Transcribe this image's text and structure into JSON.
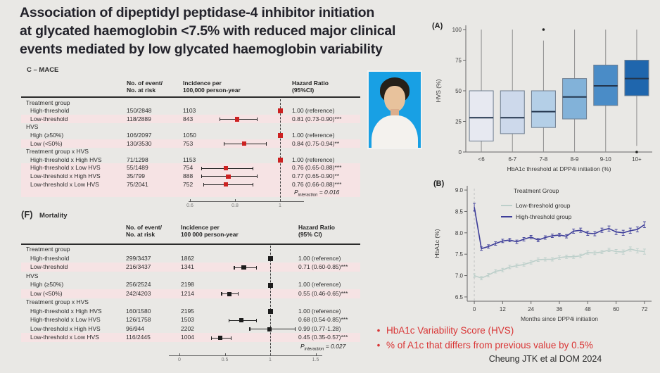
{
  "slide": {
    "title": "Association of dipeptidyl peptidase-4 inhibitor initiation\nat glycated haemoglobin <7.5% with reduced major clinical\nevents mediated by low glycated haemoglobin variability",
    "bullets": [
      "HbA1c Variability Score (HVS)",
      "% of A1c that differs from previous value by 0.5%"
    ],
    "citation": "Cheung JTK et al DOM 2024",
    "background": "#e9e8e5",
    "accent_red": "#d93535",
    "photo_background": "#18a0e4"
  },
  "chart_data": [
    {
      "id": "forest_mace",
      "type": "forest",
      "tag": "",
      "heading": "C – MACE",
      "columns": {
        "events": "No. of event/\nNo. at risk",
        "incidence": "Incidence per\n100,000 person-year",
        "hr": "Hazard Ratio\n(95%CI)"
      },
      "marker_color": "#cc2121",
      "axis_ticks": [
        0.6,
        0.8,
        1
      ],
      "axis_tick_labels": [
        "0.6",
        "0.8",
        "1"
      ],
      "p_symbol": "P",
      "p_sub": "interaction",
      "p_value": " = 0.016",
      "p_highlight": true,
      "rows": [
        {
          "label": "Treatment group",
          "indent": 0
        },
        {
          "label": "High-threshold",
          "indent": 1,
          "events": "150/2848",
          "incidence": "1103",
          "hr": 1.0,
          "text": "1.00 (reference)",
          "ref": true
        },
        {
          "label": "Low-threshold",
          "indent": 1,
          "events": "118/2889",
          "incidence": "843",
          "hr": 0.81,
          "lo": 0.73,
          "hi": 0.9,
          "text": "0.81 (0.73-0.90)***",
          "hl": true
        },
        {
          "label": "HVS",
          "indent": 0
        },
        {
          "label": "High (≥50%)",
          "indent": 1,
          "events": "106/2097",
          "incidence": "1050",
          "hr": 1.0,
          "text": "1.00 (reference)",
          "ref": true
        },
        {
          "label": "Low (<50%)",
          "indent": 1,
          "events": "130/3530",
          "incidence": "753",
          "hr": 0.84,
          "lo": 0.75,
          "hi": 0.94,
          "text": "0.84 (0.75-0.94)**",
          "hl": true
        },
        {
          "label": "Treatment group x HVS",
          "indent": 0
        },
        {
          "label": "High-threshold x High HVS",
          "indent": 1,
          "events": "71/1298",
          "incidence": "1153",
          "hr": 1.0,
          "text": "1.00 (reference)",
          "ref": true
        },
        {
          "label": "High-threshold x Low HVS",
          "indent": 1,
          "events": "55/1489",
          "incidence": "754",
          "hr": 0.76,
          "lo": 0.65,
          "hi": 0.88,
          "text": "0.76 (0.65-0.88)***",
          "hl": true
        },
        {
          "label": "Low-threshold x High HVS",
          "indent": 1,
          "events": "35/799",
          "incidence": "888",
          "hr": 0.77,
          "lo": 0.65,
          "hi": 0.9,
          "text": "0.77 (0.65-0.90)**",
          "hl": true
        },
        {
          "label": "Low-threshold x Low HVS",
          "indent": 1,
          "events": "75/2041",
          "incidence": "752",
          "hr": 0.76,
          "lo": 0.66,
          "hi": 0.88,
          "text": "0.76 (0.66-0.88)***",
          "hl": true
        }
      ]
    },
    {
      "id": "forest_mortality",
      "type": "forest",
      "tag": "(F)",
      "heading": "Mortality",
      "columns": {
        "events": "No. of event/\nNo. at risk",
        "incidence": "Incidence per\n100 000 person-year",
        "hr": "Hazard Ratio\n(95% CI)"
      },
      "marker_color": "#1c1c1c",
      "axis_ticks": [
        0,
        0.5,
        1,
        1.5
      ],
      "axis_tick_labels": [
        "0",
        "0.5",
        "1",
        "1.5"
      ],
      "p_symbol": "P",
      "p_sub": "interaction",
      "p_value": " = 0.027",
      "p_highlight": false,
      "rows": [
        {
          "label": "Treatment group",
          "indent": 0
        },
        {
          "label": "High-threshold",
          "indent": 1,
          "events": "299/3437",
          "incidence": "1862",
          "hr": 1.0,
          "text": "1.00 (reference)",
          "ref": true
        },
        {
          "label": "Low-threshold",
          "indent": 1,
          "events": "216/3437",
          "incidence": "1341",
          "hr": 0.71,
          "lo": 0.6,
          "hi": 0.85,
          "text": "0.71 (0.60-0.85)***",
          "hl": true
        },
        {
          "label": "HVS",
          "indent": 0
        },
        {
          "label": "High (≥50%)",
          "indent": 1,
          "events": "256/2524",
          "incidence": "2198",
          "hr": 1.0,
          "text": "1.00 (reference)",
          "ref": true
        },
        {
          "label": "Low (<50%)",
          "indent": 1,
          "events": "242/4203",
          "incidence": "1214",
          "hr": 0.55,
          "lo": 0.46,
          "hi": 0.65,
          "text": "0.55 (0.46-0.65)***",
          "hl": true
        },
        {
          "label": "Treatment group x HVS",
          "indent": 0
        },
        {
          "label": "High-threshold x High HVS",
          "indent": 1,
          "events": "160/1580",
          "incidence": "2195",
          "hr": 1.0,
          "text": "1.00 (reference)",
          "ref": true
        },
        {
          "label": "High-threshold x Low HVS",
          "indent": 1,
          "events": "126/1758",
          "incidence": "1503",
          "hr": 0.68,
          "lo": 0.54,
          "hi": 0.85,
          "text": "0.68 (0.54-0.85)***"
        },
        {
          "label": "Low-threshold x High HVS",
          "indent": 1,
          "events": "96/944",
          "incidence": "2202",
          "hr": 0.99,
          "lo": 0.77,
          "hi": 1.28,
          "text": "0.99 (0.77-1.28)"
        },
        {
          "label": "Low-threshold x Low HVS",
          "indent": 1,
          "events": "116/2445",
          "incidence": "1004",
          "hr": 0.45,
          "lo": 0.35,
          "hi": 0.57,
          "text": "0.45 (0.35-0.57)***",
          "hl": true
        }
      ]
    },
    {
      "id": "hvs_by_hba1c_threshold",
      "type": "box",
      "tag": "(A)",
      "xlabel": "HbA1c threshold at DPP4i initiation (%)",
      "ylabel": "HVS (%)",
      "ylim": [
        0,
        100
      ],
      "yticks": [
        0,
        25,
        50,
        75,
        100
      ],
      "categories": [
        "<6",
        "6-7",
        "7-8",
        "8-9",
        "9-10",
        "10+"
      ],
      "boxes": [
        {
          "low": 0,
          "q1": 9,
          "median": 28,
          "q3": 50,
          "high": 100,
          "outliers": [],
          "color": "#e7e9f1"
        },
        {
          "low": 0,
          "q1": 15,
          "median": 28,
          "q3": 50,
          "high": 100,
          "outliers": [],
          "color": "#cdd9eb"
        },
        {
          "low": 0,
          "q1": 20,
          "median": 33,
          "q3": 50,
          "high": 91,
          "outliers": [
            100
          ],
          "color": "#b4cfe7"
        },
        {
          "low": 0,
          "q1": 27,
          "median": 45,
          "q3": 60,
          "high": 100,
          "outliers": [],
          "color": "#82b2d9"
        },
        {
          "low": 0,
          "q1": 38,
          "median": 54,
          "q3": 71,
          "high": 100,
          "outliers": [],
          "color": "#4a8cc7"
        },
        {
          "low": 5,
          "q1": 46,
          "median": 60,
          "q3": 75,
          "high": 100,
          "outliers": [
            0
          ],
          "color": "#1f66ad"
        }
      ]
    },
    {
      "id": "hba1c_trajectory",
      "type": "line",
      "tag": "(B)",
      "xlabel": "Months since DPP4i initiation",
      "ylabel": "HbA1c (%)",
      "xlim": [
        -3,
        75
      ],
      "ylim": [
        6.4,
        9.1
      ],
      "xticks": [
        0,
        12,
        24,
        36,
        48,
        60,
        72
      ],
      "ytick_labels": [
        "6.5",
        "7.0",
        "7.5",
        "8.0",
        "8.5",
        "9.0"
      ],
      "yticks": [
        6.5,
        7.0,
        7.5,
        8.0,
        8.5,
        9.0
      ],
      "legend_title": "Treatment Group",
      "x": [
        0,
        3,
        6,
        9,
        12,
        15,
        18,
        21,
        24,
        27,
        30,
        33,
        36,
        39,
        42,
        45,
        48,
        51,
        54,
        57,
        60,
        63,
        66,
        69,
        72
      ],
      "series": [
        {
          "name": "Low-threshold group",
          "color": "#bccfca",
          "values": [
            7.0,
            6.94,
            7.01,
            7.1,
            7.13,
            7.2,
            7.23,
            7.26,
            7.31,
            7.37,
            7.38,
            7.38,
            7.42,
            7.44,
            7.44,
            7.46,
            7.54,
            7.53,
            7.55,
            7.6,
            7.56,
            7.55,
            7.62,
            7.58,
            7.56
          ],
          "err": [
            0.04,
            0.04,
            0.04,
            0.04,
            0.04,
            0.04,
            0.04,
            0.04,
            0.04,
            0.04,
            0.04,
            0.04,
            0.04,
            0.04,
            0.04,
            0.04,
            0.04,
            0.04,
            0.04,
            0.04,
            0.05,
            0.05,
            0.05,
            0.05,
            0.06
          ]
        },
        {
          "name": "High-threshold group",
          "color": "#3d3d99",
          "values": [
            8.6,
            7.63,
            7.68,
            7.75,
            7.81,
            7.83,
            7.79,
            7.85,
            7.9,
            7.83,
            7.89,
            7.93,
            7.95,
            7.92,
            8.04,
            8.06,
            7.99,
            7.98,
            8.06,
            8.1,
            8.02,
            8.0,
            8.05,
            8.08,
            8.19
          ],
          "err": [
            0.09,
            0.04,
            0.04,
            0.04,
            0.04,
            0.04,
            0.04,
            0.04,
            0.04,
            0.04,
            0.04,
            0.04,
            0.04,
            0.04,
            0.05,
            0.05,
            0.05,
            0.05,
            0.05,
            0.06,
            0.06,
            0.06,
            0.06,
            0.06,
            0.07
          ]
        }
      ]
    }
  ]
}
